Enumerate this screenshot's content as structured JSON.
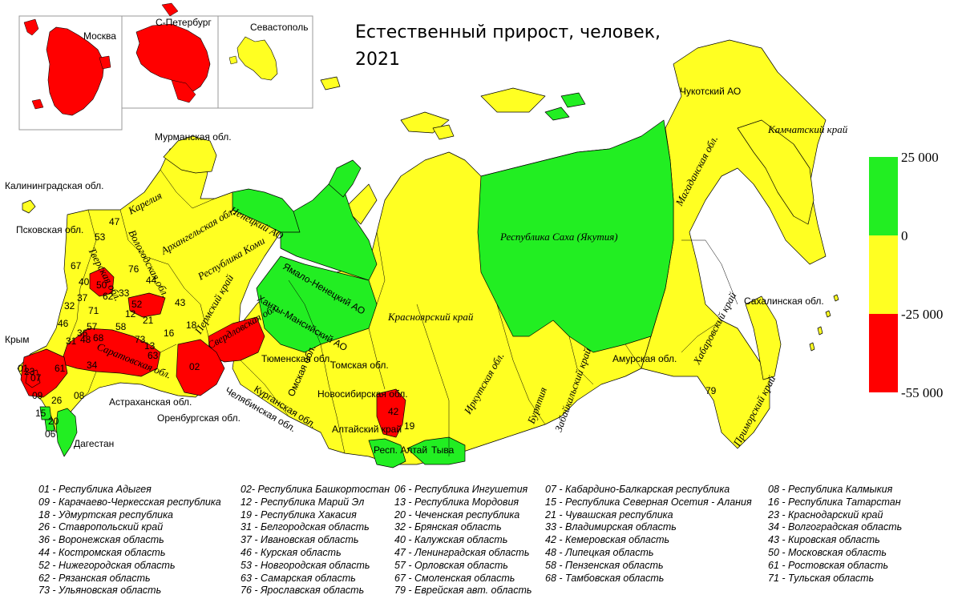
{
  "title_line1": "Естественный прирост, человек,",
  "title_line2": "2021",
  "colors": {
    "green": "#22ee22",
    "yellow": "#ffff22",
    "red": "#ff0000",
    "ocean": "#ffffff",
    "border": "#000000"
  },
  "scale": {
    "labels": [
      "25 000",
      "0",
      "-25 000",
      "-55 000"
    ],
    "bins": [
      {
        "range": "25 000 … 0",
        "color": "#22ee22"
      },
      {
        "range": "0 … -25 000",
        "color": "#ffff22"
      },
      {
        "range": "-25 000 … -55 000",
        "color": "#ff0000"
      }
    ]
  },
  "insets": {
    "moscow": "Москва",
    "spb": "С-Петербург",
    "sevastopol": "Севастополь"
  },
  "map_labels": {
    "murmansk": "Мурманская обл.",
    "kaliningrad": "Калининградская обл.",
    "pskov": "Псковская обл.",
    "crimea": "Крым",
    "karelia": "Карелия",
    "arkhangelsk": "Архангельская обл.",
    "nenets": "Ненецкий АО",
    "komi": "Республика Коми",
    "yamal": "Ямало-Ненецкий АО",
    "khanty": "Ханты-Мансийский АО",
    "krasnoyarsk": "Красноярский край",
    "yakutia": "Республика Саха (Якутия)",
    "chukotka": "Чукотский АО",
    "kamchatka": "Камчатский край",
    "magadan": "Магаданская обл.",
    "sakhalin": "Сахалинская обл.",
    "khabarovsk": "Хабаровский край",
    "amur": "Амурская обл.",
    "primorye": "Приморский край",
    "irkutsk": "Иркутская обл.",
    "buryatia": "Бурятия",
    "zabaikal": "Забайкальский край",
    "tyva": "Тыва",
    "altai_rep": "Респ. Алтай",
    "altai_krai": "Алтайский край",
    "novosibirsk": "Новосибирская обл.",
    "omsk": "Омская обл.",
    "tomsk": "Томская обл.",
    "tyumen": "Тюменская обл.",
    "kurgan": "Курганская обл.",
    "chelyabinsk": "Челябинская обл.",
    "orenburg": "Оренбургская обл.",
    "sverdlovsk": "Свердловская обл.",
    "perm": "Пермский край",
    "saratov": "Саратовская обл.",
    "astrakhan": "Астраханская обл.",
    "dagestan": "Дагестан",
    "vologda": "Вологодская обл.",
    "tver": "Тверская обл."
  },
  "legend": [
    [
      "01 - Республика Адыгея",
      "02- Республика Башкортостан",
      "06 - Республика Ингушетия",
      "07 - Кабардино-Балкарская республика",
      "08 - Республика Калмыкия"
    ],
    [
      "09 - Карачаево-Черкесская республика",
      "12 - Республика Марий Эл",
      "13 - Республика Мордовия",
      "15 - Республика Северная Осетия - Алания",
      "16 - Республика Татарстан"
    ],
    [
      "18 - Удмуртская республика",
      "19 - Республика Хакасия",
      "20 - Чеченская республика",
      "21 - Чувашская республика",
      "23 - Краснодарский край"
    ],
    [
      "26 - Ставропольский край",
      "31 - Белгородская область",
      "32 - Брянская область",
      "33 - Владимирская область",
      "34 - Волгоградская область"
    ],
    [
      "36 - Воронежская область",
      "37 - Ивановская область",
      "40 - Калужская область",
      "42 - Кемеровская область",
      "43 - Кировская область"
    ],
    [
      "44 - Костромская область",
      "46 - Курская область",
      "47 - Ленинградская область",
      "48 - Липецкая область",
      "50 - Московская область"
    ],
    [
      "52 - Нижегородская область",
      "53 - Новгородская область",
      "57 - Орловская область",
      "58 - Пензенская область",
      "61 - Ростовская область"
    ],
    [
      "62 - Рязанская область",
      "63 - Самарская область",
      "67 - Смоленская область",
      "68 - Тамбовская область",
      "71 - Тульская область"
    ],
    [
      "73 - Ульяновская область",
      "76 - Ярославская область",
      "79 - Еврейская авт. область",
      "",
      ""
    ]
  ],
  "numbers": [
    "53",
    "47",
    "76",
    "67",
    "40",
    "50",
    "33",
    "44",
    "37",
    "62",
    "71",
    "32",
    "52",
    "46",
    "57",
    "68",
    "58",
    "21",
    "31",
    "48",
    "43",
    "12",
    "16",
    "36",
    "34",
    "61",
    "26",
    "08",
    "18",
    "02",
    "13",
    "73",
    "63",
    "09",
    "07",
    "15",
    "06",
    "20",
    "01",
    "23",
    "42",
    "19",
    "79"
  ]
}
